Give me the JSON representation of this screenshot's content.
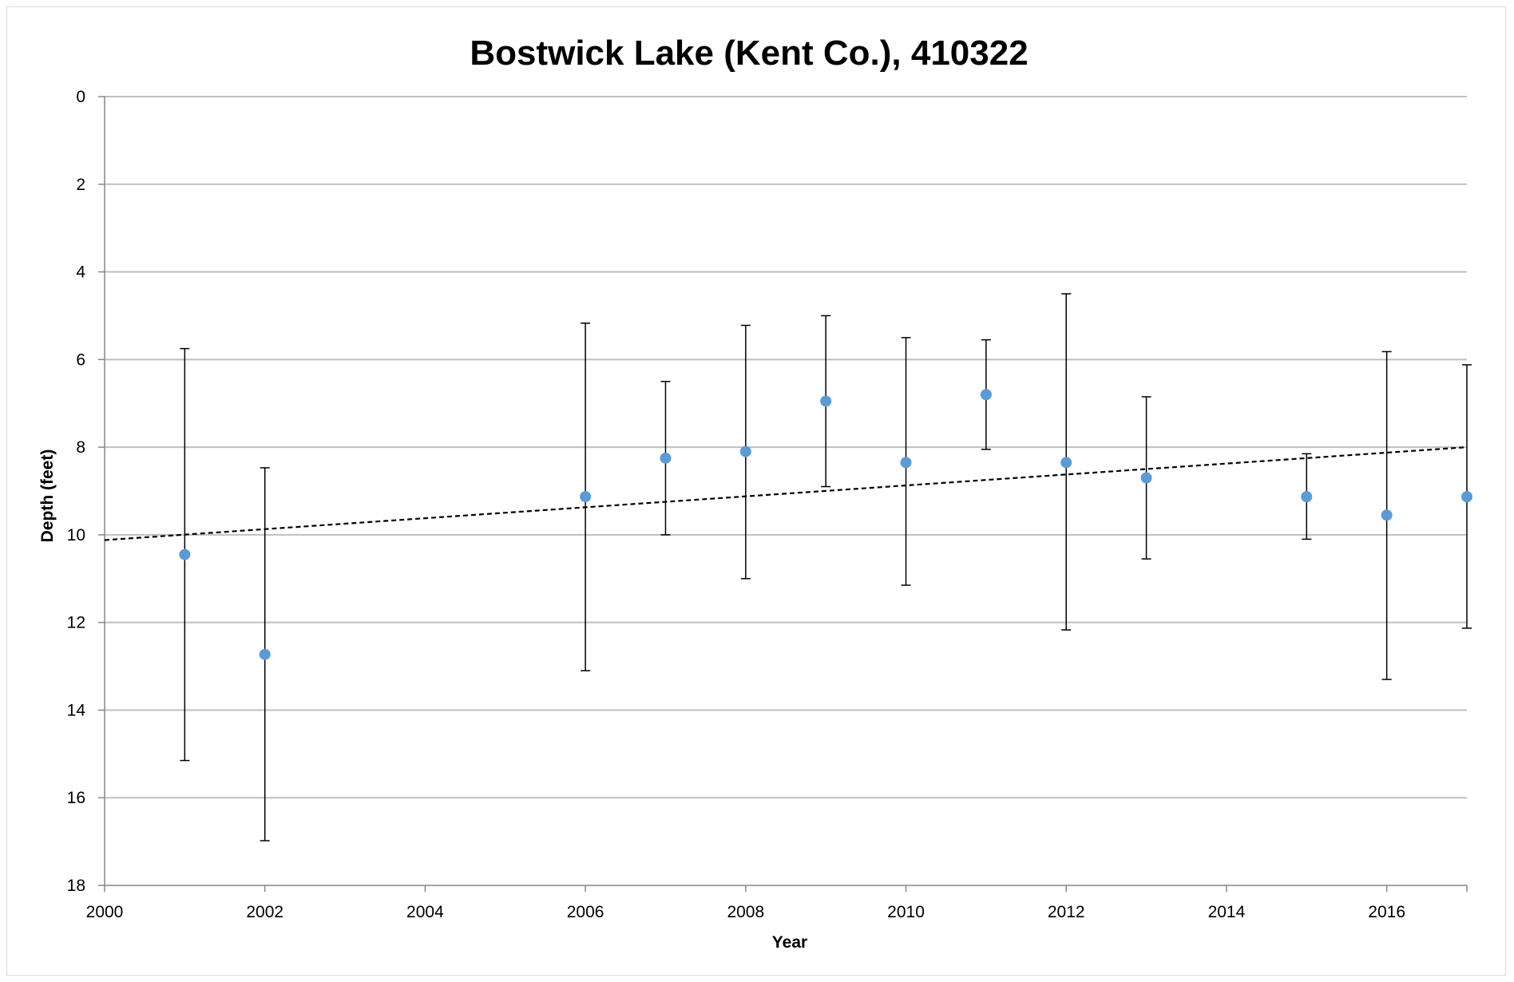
{
  "chart_data": {
    "type": "scatter",
    "title": "Bostwick Lake (Kent Co.), 410322",
    "xlabel": "Year",
    "ylabel": "Depth (feet)",
    "xlim": [
      2000,
      2017
    ],
    "ylim": [
      0,
      18
    ],
    "y_inverted": true,
    "x_ticks": [
      "2000",
      "2002",
      "2004",
      "2006",
      "2008",
      "2010",
      "2012",
      "2014",
      "2016"
    ],
    "y_ticks": [
      "0",
      "2",
      "4",
      "6",
      "8",
      "10",
      "12",
      "14",
      "16",
      "18"
    ],
    "grid": "horizontal",
    "legend": "none",
    "series": [
      {
        "marker_color": "#5b9bd5",
        "points": [
          {
            "x": 2001,
            "y": 10.45,
            "err_low": 5.75,
            "err_high": 15.15
          },
          {
            "x": 2002,
            "y": 12.73,
            "err_low": 8.47,
            "err_high": 16.98
          },
          {
            "x": 2006,
            "y": 9.13,
            "err_low": 5.17,
            "err_high": 13.1
          },
          {
            "x": 2007,
            "y": 8.25,
            "err_low": 6.5,
            "err_high": 10.0
          },
          {
            "x": 2008,
            "y": 8.1,
            "err_low": 5.22,
            "err_high": 11.0
          },
          {
            "x": 2009,
            "y": 6.95,
            "err_low": 5.0,
            "err_high": 8.9
          },
          {
            "x": 2010,
            "y": 8.35,
            "err_low": 5.5,
            "err_high": 11.15
          },
          {
            "x": 2011,
            "y": 6.8,
            "err_low": 5.55,
            "err_high": 8.05
          },
          {
            "x": 2012,
            "y": 8.35,
            "err_low": 4.5,
            "err_high": 12.17
          },
          {
            "x": 2013,
            "y": 8.7,
            "err_low": 6.85,
            "err_high": 10.55
          },
          {
            "x": 2015,
            "y": 9.13,
            "err_low": 8.15,
            "err_high": 10.1
          },
          {
            "x": 2016,
            "y": 9.55,
            "err_low": 5.82,
            "err_high": 13.3
          },
          {
            "x": 2017,
            "y": 9.13,
            "err_low": 6.12,
            "err_high": 12.13
          }
        ]
      }
    ],
    "trendline": {
      "style": "dashed",
      "color": "#000000",
      "x": [
        2000,
        2017
      ],
      "y": [
        10.12,
        8.0
      ]
    }
  }
}
